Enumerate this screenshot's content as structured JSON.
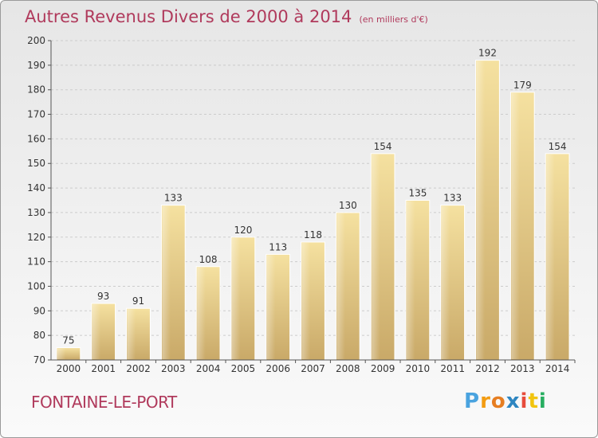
{
  "header": {
    "title": "Autres Revenus Divers de 2000 à 2014",
    "subtitle": "(en milliers d'€)"
  },
  "footer": {
    "town": "FONTAINE-LE-PORT",
    "logo": [
      "P",
      "r",
      "o",
      "x",
      "i",
      "t",
      "i"
    ],
    "logo_colors": [
      "#4aa3df",
      "#f39c12",
      "#e67e22",
      "#2e86c1",
      "#e74c3c",
      "#f1c40f",
      "#27ae60"
    ]
  },
  "chart_data": {
    "type": "bar",
    "title": "Autres Revenus Divers de 2000 à 2014",
    "subtitle": "(en milliers d'€)",
    "categories": [
      "2000",
      "2001",
      "2002",
      "2003",
      "2004",
      "2005",
      "2006",
      "2007",
      "2008",
      "2009",
      "2010",
      "2011",
      "2012",
      "2013",
      "2014"
    ],
    "values": [
      75,
      93,
      91,
      133,
      108,
      120,
      113,
      118,
      130,
      154,
      135,
      133,
      192,
      179,
      154
    ],
    "ylim": [
      70,
      200
    ],
    "yticks": [
      70,
      80,
      90,
      100,
      110,
      120,
      130,
      140,
      150,
      160,
      170,
      180,
      190,
      200
    ],
    "grid": true,
    "colors": {
      "bar_light": "#f5e1a0",
      "bar_dark": "#c9a968",
      "grid": "#cccccc",
      "text": "#333333"
    }
  }
}
